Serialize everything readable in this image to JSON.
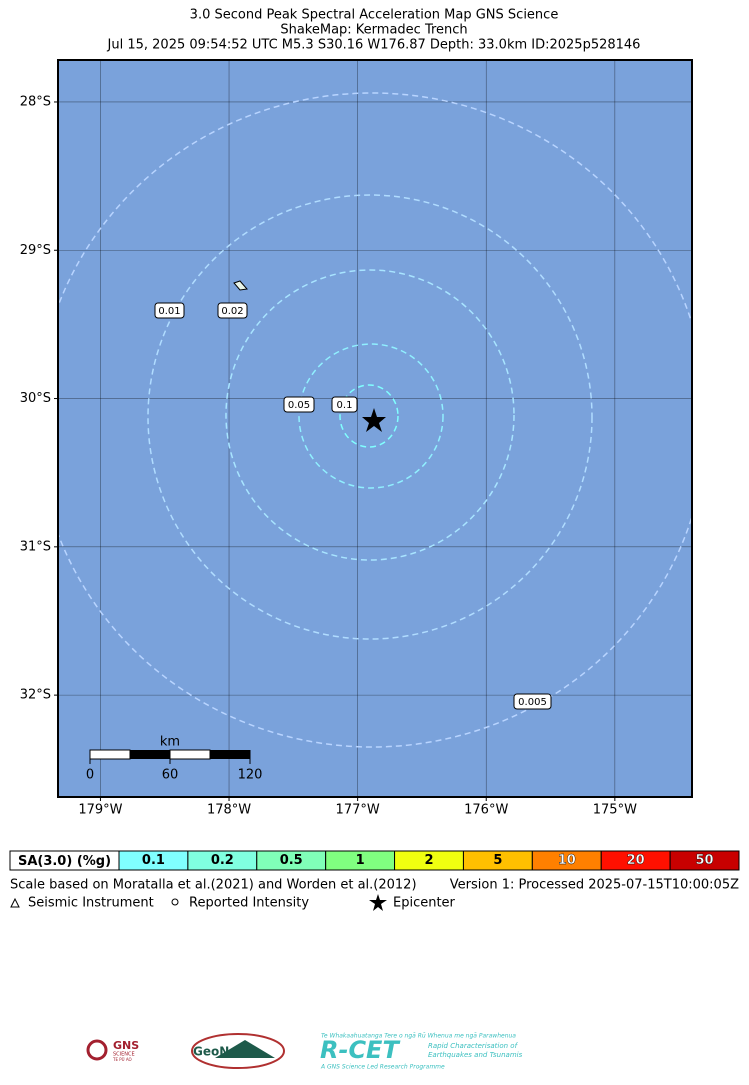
{
  "header": {
    "title_lines": [
      "3.0 Second Peak Spectral Acceleration Map GNS Science",
      "ShakeMap: Kermadec Trench",
      "Jul 15, 2025 09:54:52 UTC M5.3 S30.16 W176.87 Depth: 33.0km ID:2025p528146"
    ]
  },
  "map": {
    "xlim": [
      -179.33,
      -174.4
    ],
    "ylim": [
      -32.687,
      -27.717
    ],
    "xticks": [
      {
        "value": -179,
        "label": "179°W"
      },
      {
        "value": -178,
        "label": "178°W"
      },
      {
        "value": -177,
        "label": "177°W"
      },
      {
        "value": -176,
        "label": "176°W"
      },
      {
        "value": -175,
        "label": "175°W"
      }
    ],
    "yticks": [
      {
        "value": -28,
        "label": "28°S"
      },
      {
        "value": -29,
        "label": "29°S"
      },
      {
        "value": -30,
        "label": "30°S"
      },
      {
        "value": -31,
        "label": "31°S"
      },
      {
        "value": -32,
        "label": "32°S"
      }
    ],
    "grid": true,
    "contour_labels": [
      "0.01",
      "0.02",
      "0.05",
      "0.1",
      "0.005"
    ],
    "scale_bar": {
      "unit": "km",
      "labels": [
        "0",
        "60",
        "120"
      ]
    }
  },
  "colorbar": {
    "label": "SA(3.0) (%g)",
    "values": [
      0.1,
      0.2,
      0.5,
      1,
      2,
      5,
      10,
      20,
      50
    ],
    "colors": [
      "#80ffff",
      "#80ffe0",
      "#80ffb8",
      "#80ff80",
      "#f0ff10",
      "#ffc000",
      "#ff8000",
      "#ff1000",
      "#c80000"
    ]
  },
  "footer": {
    "note": "Scale based on Moratalla et al.(2021) and Worden et al.(2012)",
    "version": "Version 1: Processed 2025-07-15T10:00:05Z",
    "legend": [
      "Seismic Instrument",
      "Reported Intensity",
      "Epicenter"
    ]
  },
  "logos": {
    "gns": "GNS",
    "gns_sub": "SCIENCE",
    "gns_maori": "TE PŪ AO",
    "geonet": "GeoNet",
    "rcet": "R-CET",
    "rcet_maori": "Te Whakaahuatanga Tere o ngā Rū Whenua me ngā Parawhenua",
    "rcet_desc1": "Rapid Characterisation of",
    "rcet_desc2": "Earthquakes and Tsunamis",
    "rcet_sub": "A GNS Science Led Research Programme"
  }
}
